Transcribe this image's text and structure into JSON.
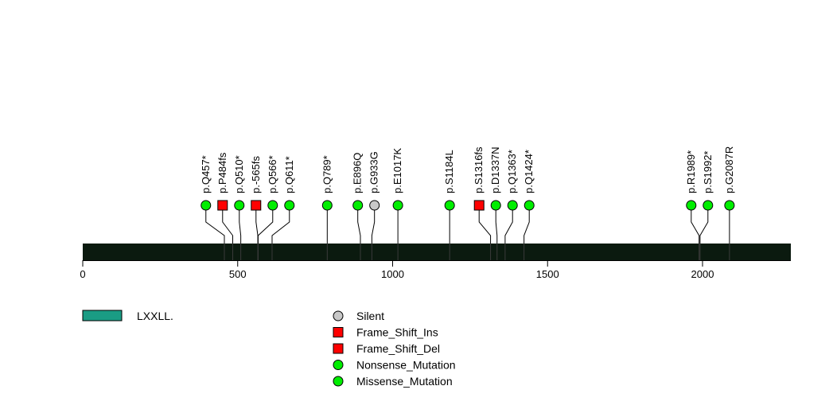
{
  "chart_data": {
    "type": "lollipop",
    "protein_length": 2285,
    "axis": {
      "min": 0,
      "max": 2285,
      "ticks": [
        0,
        500,
        1000,
        1500,
        2000
      ]
    },
    "colors": {
      "backbone": "#0b1a0f",
      "domain_fill": "#1a9c84",
      "green": "#00ee00",
      "red": "#ff0000",
      "gray": "#c8c8c8"
    },
    "domains": [
      {
        "name": "LXXLL.",
        "start": 0,
        "end": 2285
      }
    ],
    "mutations": [
      {
        "label": "p.Q457*",
        "position": 457,
        "type": "Nonsense_Mutation"
      },
      {
        "label": "p.P484fs",
        "position": 484,
        "type": "Frame_Shift_Ins"
      },
      {
        "label": "p.Q510*",
        "position": 510,
        "type": "Nonsense_Mutation"
      },
      {
        "label": "p.-565fs",
        "position": 565,
        "type": "Frame_Shift_Del"
      },
      {
        "label": "p.Q566*",
        "position": 566,
        "type": "Nonsense_Mutation"
      },
      {
        "label": "p.Q611*",
        "position": 611,
        "type": "Nonsense_Mutation"
      },
      {
        "label": "p.Q789*",
        "position": 789,
        "type": "Nonsense_Mutation"
      },
      {
        "label": "p.E896Q",
        "position": 896,
        "type": "Missense_Mutation"
      },
      {
        "label": "p.G933G",
        "position": 933,
        "type": "Silent"
      },
      {
        "label": "p.E1017K",
        "position": 1017,
        "type": "Missense_Mutation"
      },
      {
        "label": "p.S1184L",
        "position": 1184,
        "type": "Missense_Mutation"
      },
      {
        "label": "p.S1316fs",
        "position": 1316,
        "type": "Frame_Shift_Del"
      },
      {
        "label": "p.D1337N",
        "position": 1337,
        "type": "Missense_Mutation"
      },
      {
        "label": "p.Q1363*",
        "position": 1363,
        "type": "Nonsense_Mutation"
      },
      {
        "label": "p.Q1424*",
        "position": 1424,
        "type": "Nonsense_Mutation"
      },
      {
        "label": "p.R1989*",
        "position": 1989,
        "type": "Nonsense_Mutation"
      },
      {
        "label": "p.S1992*",
        "position": 1992,
        "type": "Nonsense_Mutation"
      },
      {
        "label": "p.G2087R",
        "position": 2087,
        "type": "Missense_Mutation"
      }
    ],
    "legend": {
      "domains": [
        {
          "label": "LXXLL.",
          "color": "#1a9c84"
        }
      ],
      "mutation_types": [
        {
          "label": "Silent",
          "shape": "circle",
          "color": "#c8c8c8"
        },
        {
          "label": "Frame_Shift_Ins",
          "shape": "square",
          "color": "#ff0000"
        },
        {
          "label": "Frame_Shift_Del",
          "shape": "square",
          "color": "#ff0000"
        },
        {
          "label": "Nonsense_Mutation",
          "shape": "circle",
          "color": "#00ee00"
        },
        {
          "label": "Missense_Mutation",
          "shape": "circle",
          "color": "#00ee00"
        }
      ]
    }
  }
}
